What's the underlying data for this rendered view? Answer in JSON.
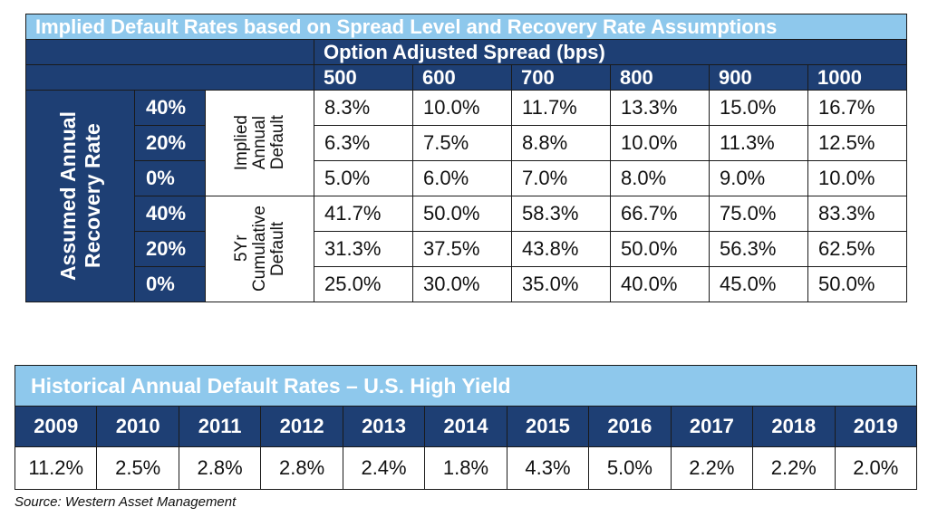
{
  "implied_table": {
    "title": "Implied Default Rates based on Spread Level and Recovery Rate Assumptions",
    "spread_header": "Option Adjusted Spread (bps)",
    "spreads": [
      "500",
      "600",
      "700",
      "800",
      "900",
      "1000"
    ],
    "recovery_axis_label": [
      "Assumed Annual",
      "Recovery Rate"
    ],
    "groups": [
      {
        "label": [
          "Implied",
          "Annual",
          "Default"
        ],
        "rows": [
          {
            "recovery": "40%",
            "values": [
              "8.3%",
              "10.0%",
              "11.7%",
              "13.3%",
              "15.0%",
              "16.7%"
            ]
          },
          {
            "recovery": "20%",
            "values": [
              "6.3%",
              "7.5%",
              "8.8%",
              "10.0%",
              "11.3%",
              "12.5%"
            ]
          },
          {
            "recovery": "0%",
            "values": [
              "5.0%",
              "6.0%",
              "7.0%",
              "8.0%",
              "9.0%",
              "10.0%"
            ]
          }
        ]
      },
      {
        "label": [
          "5Yr",
          "Cumulative",
          "Default"
        ],
        "rows": [
          {
            "recovery": "40%",
            "values": [
              "41.7%",
              "50.0%",
              "58.3%",
              "66.7%",
              "75.0%",
              "83.3%"
            ]
          },
          {
            "recovery": "20%",
            "values": [
              "31.3%",
              "37.5%",
              "43.8%",
              "50.0%",
              "56.3%",
              "62.5%"
            ]
          },
          {
            "recovery": "0%",
            "values": [
              "25.0%",
              "30.0%",
              "35.0%",
              "40.0%",
              "45.0%",
              "50.0%"
            ]
          }
        ]
      }
    ]
  },
  "historical_table": {
    "title": "Historical Annual Default Rates – U.S. High Yield",
    "years": [
      "2009",
      "2010",
      "2011",
      "2012",
      "2013",
      "2014",
      "2015",
      "2016",
      "2017",
      "2018",
      "2019"
    ],
    "values": [
      "11.2%",
      "2.5%",
      "2.8%",
      "2.8%",
      "2.4%",
      "1.8%",
      "4.3%",
      "5.0%",
      "2.2%",
      "2.2%",
      "2.0%"
    ]
  },
  "source": "Source: Western Asset Management",
  "colors": {
    "navy": "#1e3f74",
    "light_blue": "#8ec8ec"
  }
}
